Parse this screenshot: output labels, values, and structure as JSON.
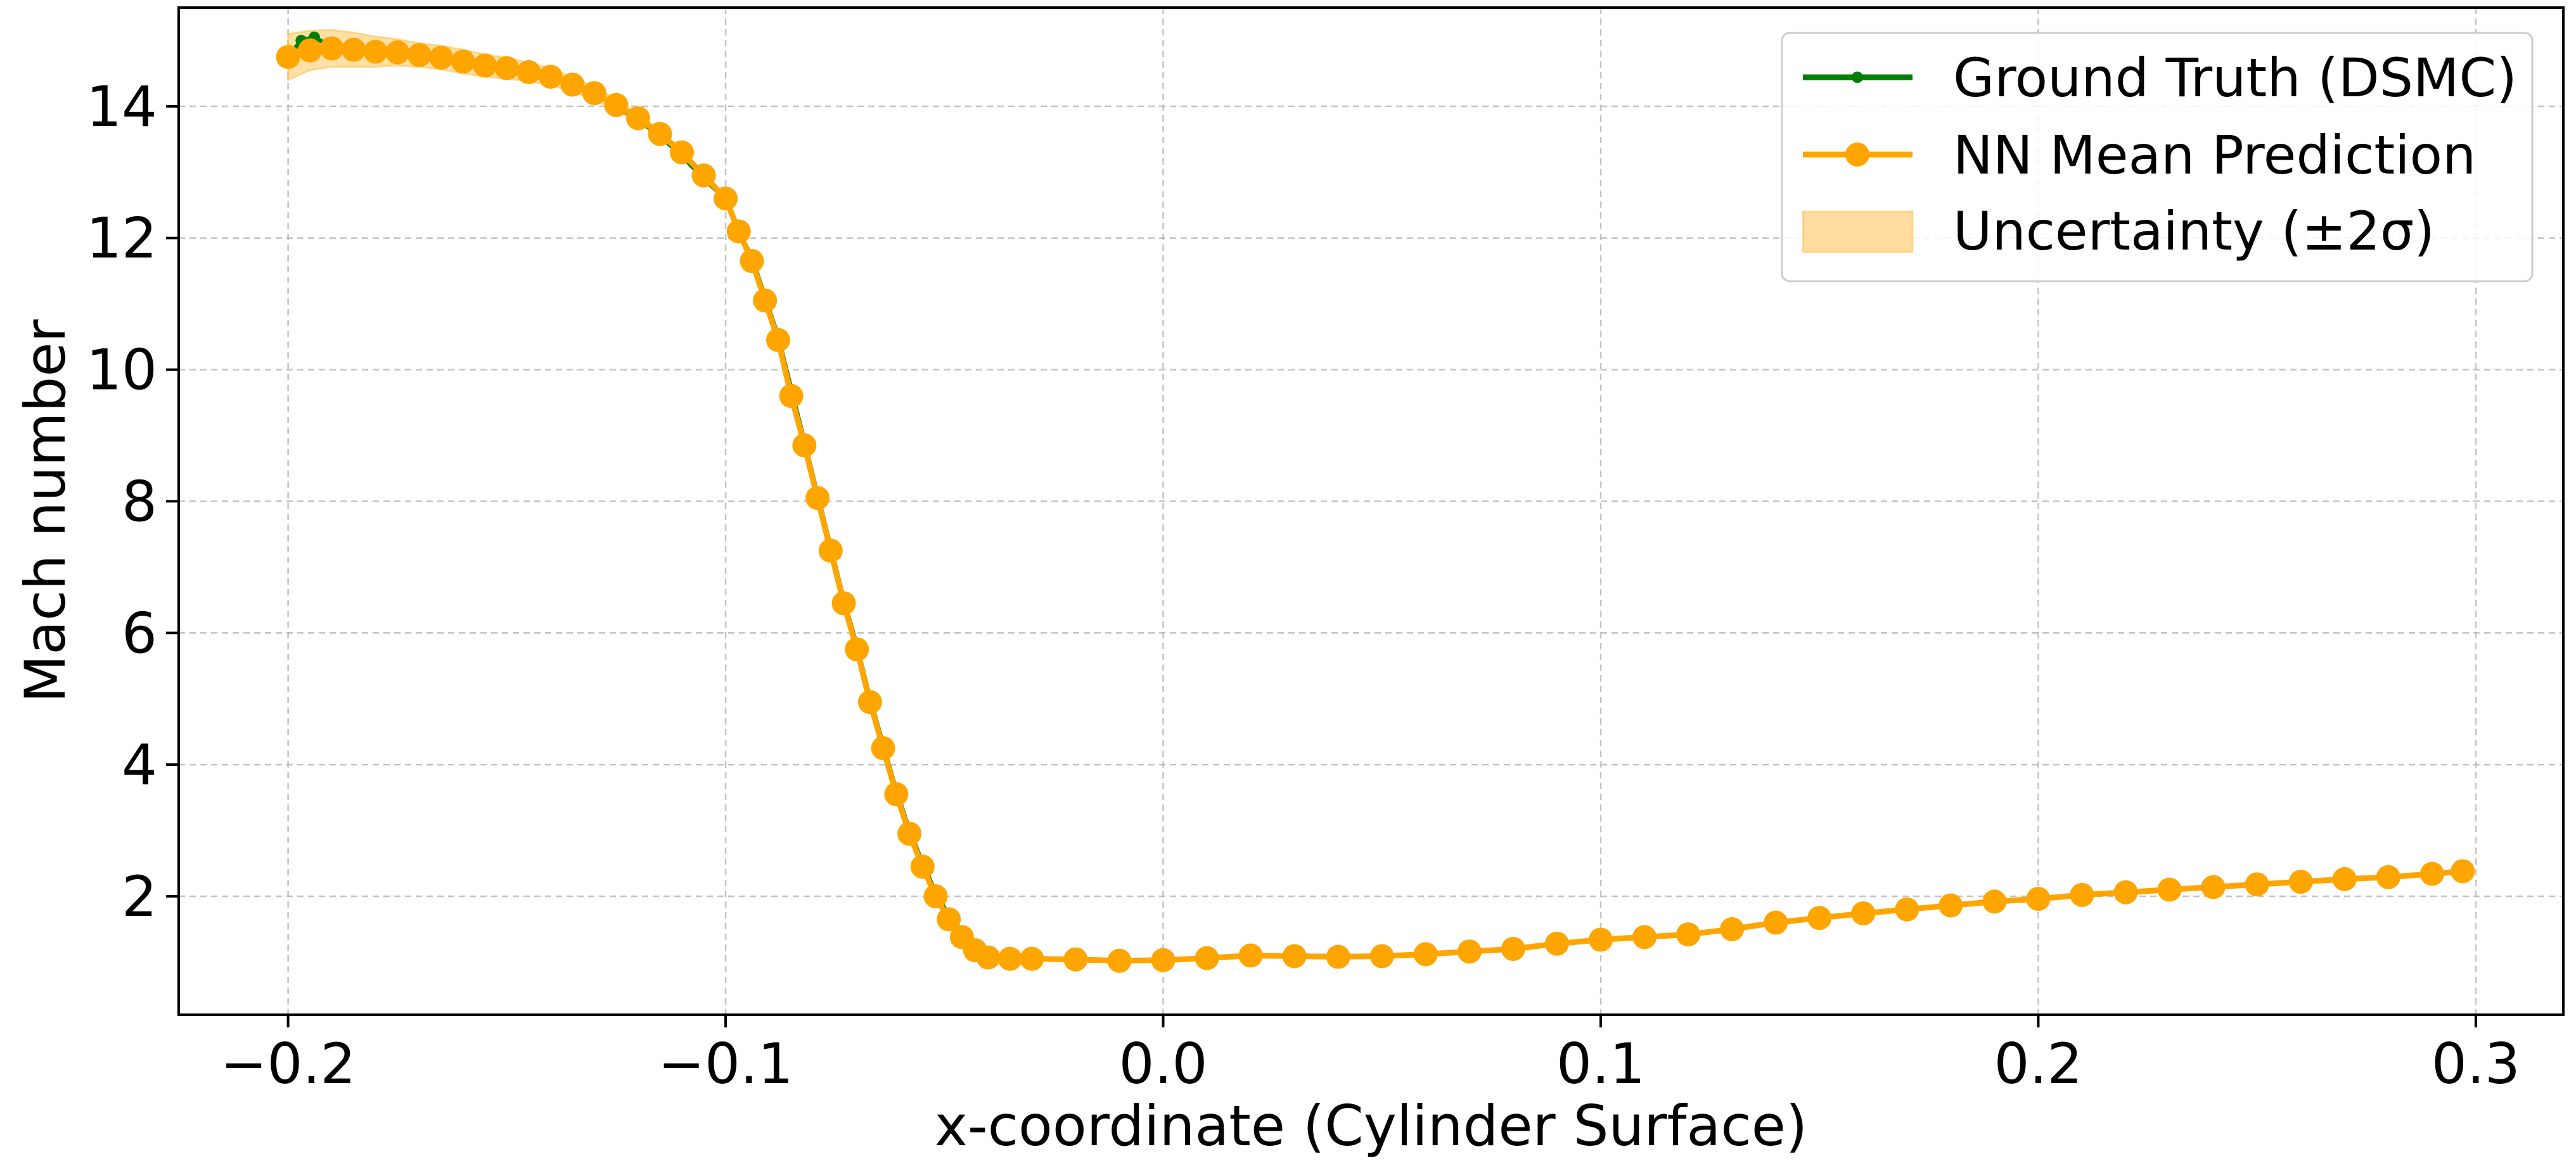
{
  "chart_data": {
    "type": "line",
    "title": "",
    "xlabel": "x-coordinate (Cylinder Surface)",
    "ylabel": "Mach number",
    "xlim": [
      -0.225,
      0.32
    ],
    "ylim": [
      0.2,
      15.5
    ],
    "xticks": [
      -0.2,
      -0.1,
      0.0,
      0.1,
      0.2,
      0.3
    ],
    "xtick_labels": [
      "−0.2",
      "−0.1",
      "0.0",
      "0.1",
      "0.2",
      "0.3"
    ],
    "yticks": [
      2,
      4,
      6,
      8,
      10,
      12,
      14
    ],
    "ytick_labels": [
      "2",
      "4",
      "6",
      "8",
      "10",
      "12",
      "14"
    ],
    "grid": true,
    "legend_position": "top-right",
    "colors": {
      "ground_truth": "#008000",
      "prediction": "#ffa500",
      "uncertainty": "#ffd58a"
    },
    "series": [
      {
        "name": "Ground Truth (DSMC)",
        "kind": "line-small-markers",
        "x": [
          -0.2,
          -0.197,
          -0.194,
          -0.19,
          -0.185,
          -0.18,
          -0.175,
          -0.17,
          -0.165,
          -0.16,
          -0.155,
          -0.15,
          -0.145,
          -0.14,
          -0.135,
          -0.13,
          -0.125,
          -0.12,
          -0.115,
          -0.11,
          -0.105,
          -0.1,
          -0.097,
          -0.094,
          -0.091,
          -0.088,
          -0.085,
          -0.082,
          -0.079,
          -0.076,
          -0.073,
          -0.07,
          -0.067,
          -0.064,
          -0.061,
          -0.058,
          -0.055,
          -0.052,
          -0.049,
          -0.046,
          -0.043,
          -0.04,
          -0.035,
          -0.03,
          -0.02,
          -0.01,
          0.0,
          0.01,
          0.02,
          0.03,
          0.04,
          0.05,
          0.06,
          0.07,
          0.08,
          0.09,
          0.1,
          0.11,
          0.12,
          0.13,
          0.14,
          0.15,
          0.16,
          0.17,
          0.18,
          0.19,
          0.2,
          0.21,
          0.22,
          0.23,
          0.24,
          0.25,
          0.26,
          0.27,
          0.28,
          0.29,
          0.297
        ],
        "y": [
          14.75,
          15.0,
          15.05,
          14.9,
          14.85,
          14.82,
          14.8,
          14.78,
          14.72,
          14.68,
          14.65,
          14.6,
          14.55,
          14.45,
          14.35,
          14.2,
          14.0,
          13.8,
          13.55,
          13.25,
          12.9,
          12.6,
          12.1,
          11.7,
          11.1,
          10.5,
          9.7,
          8.9,
          8.1,
          7.3,
          6.5,
          5.8,
          5.0,
          4.3,
          3.6,
          3.0,
          2.5,
          2.05,
          1.7,
          1.4,
          1.2,
          1.07,
          1.05,
          1.05,
          1.04,
          1.02,
          1.03,
          1.06,
          1.1,
          1.09,
          1.08,
          1.09,
          1.12,
          1.16,
          1.2,
          1.28,
          1.34,
          1.38,
          1.42,
          1.5,
          1.6,
          1.67,
          1.74,
          1.8,
          1.86,
          1.92,
          1.96,
          2.02,
          2.06,
          2.1,
          2.14,
          2.18,
          2.22,
          2.26,
          2.29,
          2.34,
          2.36
        ]
      },
      {
        "name": "NN Mean Prediction",
        "kind": "line-large-markers",
        "x": [
          -0.2,
          -0.195,
          -0.19,
          -0.185,
          -0.18,
          -0.175,
          -0.17,
          -0.165,
          -0.16,
          -0.155,
          -0.15,
          -0.145,
          -0.14,
          -0.135,
          -0.13,
          -0.125,
          -0.12,
          -0.115,
          -0.11,
          -0.105,
          -0.1,
          -0.097,
          -0.094,
          -0.091,
          -0.088,
          -0.085,
          -0.082,
          -0.079,
          -0.076,
          -0.073,
          -0.07,
          -0.067,
          -0.064,
          -0.061,
          -0.058,
          -0.055,
          -0.052,
          -0.049,
          -0.046,
          -0.043,
          -0.04,
          -0.035,
          -0.03,
          -0.02,
          -0.01,
          0.0,
          0.01,
          0.02,
          0.03,
          0.04,
          0.05,
          0.06,
          0.07,
          0.08,
          0.09,
          0.1,
          0.11,
          0.12,
          0.13,
          0.14,
          0.15,
          0.16,
          0.17,
          0.18,
          0.19,
          0.2,
          0.21,
          0.22,
          0.23,
          0.24,
          0.25,
          0.26,
          0.27,
          0.28,
          0.29,
          0.297
        ],
        "y": [
          14.75,
          14.85,
          14.88,
          14.86,
          14.83,
          14.82,
          14.78,
          14.74,
          14.68,
          14.62,
          14.58,
          14.52,
          14.45,
          14.33,
          14.2,
          14.02,
          13.82,
          13.58,
          13.3,
          12.95,
          12.6,
          12.1,
          11.65,
          11.05,
          10.45,
          9.6,
          8.85,
          8.05,
          7.25,
          6.45,
          5.75,
          4.95,
          4.25,
          3.55,
          2.95,
          2.45,
          2.0,
          1.65,
          1.38,
          1.18,
          1.07,
          1.05,
          1.05,
          1.04,
          1.02,
          1.03,
          1.06,
          1.1,
          1.09,
          1.08,
          1.09,
          1.12,
          1.16,
          1.2,
          1.28,
          1.34,
          1.38,
          1.42,
          1.5,
          1.6,
          1.67,
          1.74,
          1.8,
          1.86,
          1.92,
          1.96,
          2.02,
          2.06,
          2.1,
          2.14,
          2.18,
          2.22,
          2.26,
          2.29,
          2.34,
          2.38
        ]
      },
      {
        "name": "Uncertainty (±2σ)",
        "kind": "band",
        "x": [
          -0.2,
          -0.195,
          -0.19,
          -0.185,
          -0.18,
          -0.175,
          -0.17,
          -0.165,
          -0.16,
          -0.155,
          -0.15,
          -0.145,
          -0.14,
          -0.135,
          -0.13,
          -0.125,
          -0.12,
          -0.115,
          -0.11,
          -0.105,
          -0.1
        ],
        "lower": [
          14.4,
          14.55,
          14.6,
          14.6,
          14.6,
          14.62,
          14.6,
          14.56,
          14.5,
          14.45,
          14.42,
          14.38,
          14.32,
          14.22,
          14.1,
          13.94,
          13.75,
          13.52,
          13.25,
          12.92,
          12.58
        ],
        "upper": [
          15.1,
          15.15,
          15.16,
          15.12,
          15.06,
          15.02,
          14.96,
          14.92,
          14.86,
          14.79,
          14.74,
          14.66,
          14.58,
          14.44,
          14.3,
          14.1,
          13.89,
          13.64,
          13.35,
          12.98,
          12.62
        ]
      }
    ]
  }
}
